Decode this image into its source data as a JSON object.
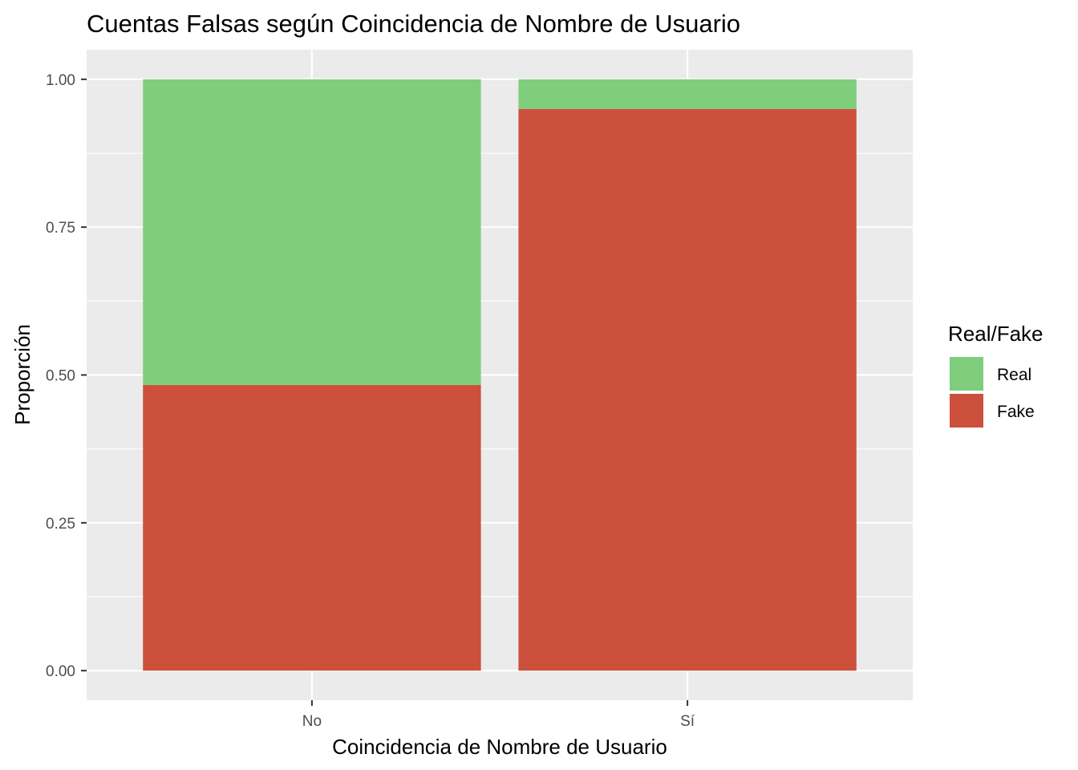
{
  "chart_data": {
    "type": "bar",
    "stacked": true,
    "title": "Cuentas Falsas según Coincidencia de Nombre de Usuario",
    "xlabel": "Coincidencia de Nombre de Usuario",
    "ylabel": "Proporción",
    "categories": [
      "No",
      "Sí"
    ],
    "series": [
      {
        "name": "Fake",
        "values": [
          0.483,
          0.95
        ],
        "color": "#CD503C"
      },
      {
        "name": "Real",
        "values": [
          0.517,
          0.05
        ],
        "color": "#7FCE7D"
      }
    ],
    "ylim": [
      -0.05,
      1.05
    ],
    "yticks": [
      "0.00",
      "0.25",
      "0.50",
      "0.75",
      "1.00"
    ],
    "grid": true,
    "legend": {
      "title": "Real/Fake",
      "placement": "right",
      "entries": [
        {
          "label": "Real",
          "color": "#7FCE7D"
        },
        {
          "label": "Fake",
          "color": "#CD503C"
        }
      ]
    },
    "panel_background": "#EBEBEB",
    "grid_color": "#FFFFFF"
  }
}
